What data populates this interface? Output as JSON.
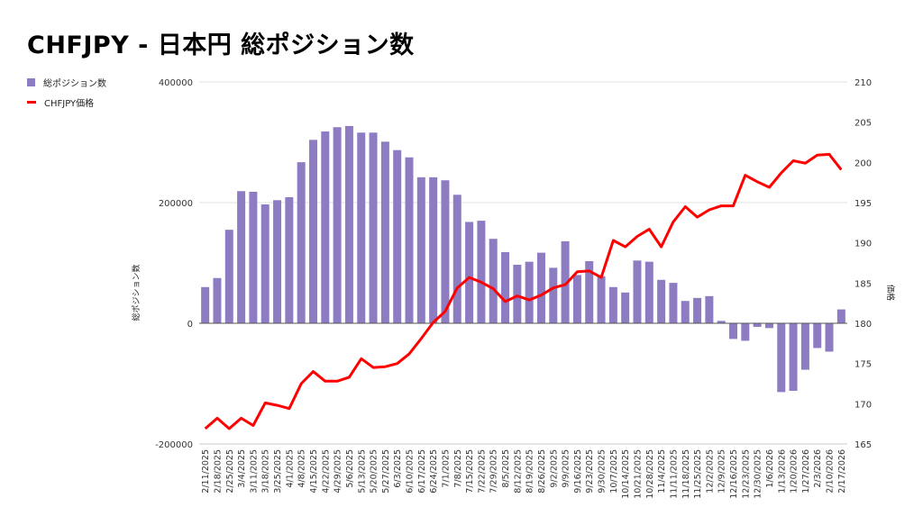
{
  "chart_data": {
    "type": "bar+line",
    "title": "CHFJPY - 日本円 総ポジション数",
    "legend": {
      "placement": "top-left",
      "entries": [
        "総ポジション数",
        "CHFJPY価格"
      ]
    },
    "colors": {
      "bars": "#8e7cc3",
      "line": "#ff0000",
      "grid": "#e0e0e0",
      "baseline": "#555555"
    },
    "y_left": {
      "label": "総ポジション数",
      "range": [
        -200000,
        400000
      ],
      "ticks": [
        "400000",
        "200000",
        "0",
        "-200000"
      ],
      "tick_values": [
        400000,
        200000,
        0,
        -200000
      ]
    },
    "y_right": {
      "label": "価格",
      "range": [
        165,
        210
      ],
      "ticks": [
        "210",
        "205",
        "200",
        "195",
        "190",
        "185",
        "180",
        "175",
        "170",
        "165"
      ],
      "tick_values": [
        210,
        205,
        200,
        195,
        190,
        185,
        180,
        175,
        170,
        165
      ]
    },
    "categories": [
      "2/11/2025",
      "2/18/2025",
      "2/25/2025",
      "3/4/2025",
      "3/11/2025",
      "3/18/2025",
      "3/25/2025",
      "4/1/2025",
      "4/8/2025",
      "4/15/2025",
      "4/22/2025",
      "4/29/2025",
      "5/6/2025",
      "5/13/2025",
      "5/20/2025",
      "5/27/2025",
      "6/3/2025",
      "6/10/2025",
      "6/17/2025",
      "6/24/2025",
      "7/1/2025",
      "7/8/2025",
      "7/15/2025",
      "7/22/2025",
      "7/29/2025",
      "8/5/2025",
      "8/12/2025",
      "8/19/2025",
      "8/26/2025",
      "9/2/2025",
      "9/9/2025",
      "9/16/2025",
      "9/23/2025",
      "9/30/2025",
      "10/7/2025",
      "10/14/2025",
      "10/21/2025",
      "10/28/2025",
      "11/4/2025",
      "11/11/2025",
      "11/18/2025",
      "11/25/2025",
      "12/2/2025",
      "12/9/2025",
      "12/16/2025",
      "12/23/2025",
      "12/30/2025",
      "1/6/2026",
      "1/13/2026",
      "1/20/2026",
      "1/27/2026",
      "2/3/2026",
      "2/10/2026",
      "2/17/2026"
    ],
    "series": [
      {
        "name": "総ポジション数",
        "type": "bar",
        "axis": "left",
        "values": [
          60000,
          75000,
          155000,
          219000,
          218000,
          197000,
          204000,
          209000,
          267000,
          304000,
          318000,
          325000,
          327000,
          316000,
          316000,
          301000,
          287000,
          275000,
          242000,
          242000,
          237000,
          213000,
          168000,
          170000,
          140000,
          118000,
          97000,
          102000,
          117000,
          92000,
          136000,
          80000,
          103000,
          78000,
          60000,
          51000,
          104000,
          102000,
          72000,
          67000,
          37000,
          42000,
          45000,
          4000,
          -26000,
          -29000,
          -6000,
          -8000,
          -114000,
          -112000,
          -77000,
          -41000,
          -47000,
          23000
        ]
      },
      {
        "name": "CHFJPY価格",
        "type": "line",
        "axis": "right",
        "values": [
          166.9,
          168.2,
          166.9,
          168.2,
          167.3,
          170.1,
          169.8,
          169.4,
          172.5,
          174.0,
          172.8,
          172.8,
          173.3,
          175.6,
          174.5,
          174.6,
          175.0,
          176.2,
          178.1,
          180.1,
          181.5,
          184.4,
          185.7,
          185.1,
          184.3,
          182.7,
          183.4,
          182.9,
          183.5,
          184.4,
          184.8,
          186.4,
          186.5,
          185.7,
          190.3,
          189.5,
          190.8,
          191.7,
          189.5,
          192.6,
          194.5,
          193.2,
          194.1,
          194.6,
          194.6,
          198.4,
          197.6,
          196.9,
          198.7,
          200.2,
          199.9,
          200.9,
          201.0,
          199.1
        ]
      }
    ]
  }
}
